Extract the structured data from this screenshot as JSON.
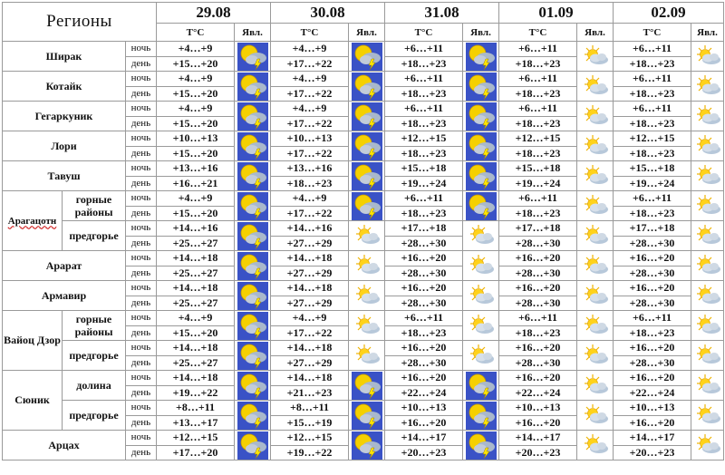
{
  "header": {
    "regions_title": "Регионы",
    "dates": [
      "29.08",
      "30.08",
      "31.08",
      "01.09",
      "02.09"
    ],
    "temp_label": "T°C",
    "phen_label": "Явл."
  },
  "labels": {
    "night": "ночь",
    "day": "день"
  },
  "icons": {
    "storm": "sun-cloud-lightning-icon",
    "partly": "partly-cloudy-icon"
  },
  "colors": {
    "storm_bg": "#3a52c6",
    "sun": "#f5d000",
    "cloud": "#a9b8cc",
    "bolt": "#ffe600"
  },
  "rows": [
    {
      "region": "Ширак",
      "sub": "",
      "temps": [
        [
          "+4…+9",
          "+15…+20"
        ],
        [
          "+4…+9",
          "+17…+22"
        ],
        [
          "+6…+11",
          "+18…+23"
        ],
        [
          "+6…+11",
          "+18…+23"
        ],
        [
          "+6…+11",
          "+18…+23"
        ]
      ],
      "icons": [
        "storm",
        "storm",
        "storm",
        "partly",
        "partly"
      ]
    },
    {
      "region": "Котайк",
      "sub": "",
      "temps": [
        [
          "+4…+9",
          "+15…+20"
        ],
        [
          "+4…+9",
          "+17…+22"
        ],
        [
          "+6…+11",
          "+18…+23"
        ],
        [
          "+6…+11",
          "+18…+23"
        ],
        [
          "+6…+11",
          "+18…+23"
        ]
      ],
      "icons": [
        "storm",
        "storm",
        "storm",
        "partly",
        "partly"
      ]
    },
    {
      "region": "Гегаркуник",
      "sub": "",
      "temps": [
        [
          "+4…+9",
          "+15…+20"
        ],
        [
          "+4…+9",
          "+17…+22"
        ],
        [
          "+6…+11",
          "+18…+23"
        ],
        [
          "+6…+11",
          "+18…+23"
        ],
        [
          "+6…+11",
          "+18…+23"
        ]
      ],
      "icons": [
        "storm",
        "storm",
        "storm",
        "partly",
        "partly"
      ]
    },
    {
      "region": "Лори",
      "sub": "",
      "temps": [
        [
          "+10…+13",
          "+15…+20"
        ],
        [
          "+10…+13",
          "+17…+22"
        ],
        [
          "+12…+15",
          "+18…+23"
        ],
        [
          "+12…+15",
          "+18…+23"
        ],
        [
          "+12…+15",
          "+18…+23"
        ]
      ],
      "icons": [
        "storm",
        "storm",
        "storm",
        "partly",
        "partly"
      ]
    },
    {
      "region": "Тавуш",
      "sub": "",
      "temps": [
        [
          "+13…+16",
          "+16…+21"
        ],
        [
          "+13…+16",
          "+18…+23"
        ],
        [
          "+15…+18",
          "+19…+24"
        ],
        [
          "+15…+18",
          "+19…+24"
        ],
        [
          "+15…+18",
          "+19…+24"
        ]
      ],
      "icons": [
        "storm",
        "storm",
        "storm",
        "partly",
        "partly"
      ]
    },
    {
      "region": "Арагацотн",
      "sub": "горные районы",
      "temps": [
        [
          "+4…+9",
          "+15…+20"
        ],
        [
          "+4…+9",
          "+17…+22"
        ],
        [
          "+6…+11",
          "+18…+23"
        ],
        [
          "+6…+11",
          "+18…+23"
        ],
        [
          "+6…+11",
          "+18…+23"
        ]
      ],
      "icons": [
        "storm",
        "storm",
        "storm",
        "partly",
        "partly"
      ]
    },
    {
      "region": "",
      "sub": "предгорье",
      "temps": [
        [
          "+14…+16",
          "+25…+27"
        ],
        [
          "+14…+16",
          "+27…+29"
        ],
        [
          "+17…+18",
          "+28…+30"
        ],
        [
          "+17…+18",
          "+28…+30"
        ],
        [
          "+17…+18",
          "+28…+30"
        ]
      ],
      "icons": [
        "storm",
        "partly",
        "partly",
        "partly",
        "partly"
      ]
    },
    {
      "region": "Арарат",
      "sub": "",
      "temps": [
        [
          "+14…+18",
          "+25…+27"
        ],
        [
          "+14…+18",
          "+27…+29"
        ],
        [
          "+16…+20",
          "+28…+30"
        ],
        [
          "+16…+20",
          "+28…+30"
        ],
        [
          "+16…+20",
          "+28…+30"
        ]
      ],
      "icons": [
        "storm",
        "partly",
        "partly",
        "partly",
        "partly"
      ]
    },
    {
      "region": "Армавир",
      "sub": "",
      "temps": [
        [
          "+14…+18",
          "+25…+27"
        ],
        [
          "+14…+18",
          "+27…+29"
        ],
        [
          "+16…+20",
          "+28…+30"
        ],
        [
          "+16…+20",
          "+28…+30"
        ],
        [
          "+16…+20",
          "+28…+30"
        ]
      ],
      "icons": [
        "storm",
        "partly",
        "partly",
        "partly",
        "partly"
      ]
    },
    {
      "region": "Вайоц Дзор",
      "sub": "горные районы",
      "temps": [
        [
          "+4…+9",
          "+15…+20"
        ],
        [
          "+4…+9",
          "+17…+22"
        ],
        [
          "+6…+11",
          "+18…+23"
        ],
        [
          "+6…+11",
          "+18…+23"
        ],
        [
          "+6…+11",
          "+18…+23"
        ]
      ],
      "icons": [
        "storm",
        "partly",
        "partly",
        "partly",
        "partly"
      ]
    },
    {
      "region": "",
      "sub": "предгорье",
      "temps": [
        [
          "+14…+18",
          "+25…+27"
        ],
        [
          "+14…+18",
          "+27…+29"
        ],
        [
          "+16…+20",
          "+28…+30"
        ],
        [
          "+16…+20",
          "+28…+30"
        ],
        [
          "+16…+20",
          "+28…+30"
        ]
      ],
      "icons": [
        "storm",
        "partly",
        "partly",
        "partly",
        "partly"
      ]
    },
    {
      "region": "Сюник",
      "sub": "долина",
      "temps": [
        [
          "+14…+18",
          "+19…+22"
        ],
        [
          "+14…+18",
          "+21…+23"
        ],
        [
          "+16…+20",
          "+22…+24"
        ],
        [
          "+16…+20",
          "+22…+24"
        ],
        [
          "+16…+20",
          "+22…+24"
        ]
      ],
      "icons": [
        "storm",
        "storm",
        "storm",
        "partly",
        "partly"
      ]
    },
    {
      "region": "",
      "sub": "предгорье",
      "temps": [
        [
          "+8…+11",
          "+13…+17"
        ],
        [
          "+8…+11",
          "+15…+19"
        ],
        [
          "+10…+13",
          "+16…+20"
        ],
        [
          "+10…+13",
          "+16…+20"
        ],
        [
          "+10…+13",
          "+16…+20"
        ]
      ],
      "icons": [
        "storm",
        "storm",
        "storm",
        "partly",
        "partly"
      ]
    },
    {
      "region": "Арцах",
      "sub": "",
      "temps": [
        [
          "+12…+15",
          "+17…+20"
        ],
        [
          "+12…+15",
          "+19…+22"
        ],
        [
          "+14…+17",
          "+20…+23"
        ],
        [
          "+14…+17",
          "+20…+23"
        ],
        [
          "+14…+17",
          "+20…+23"
        ]
      ],
      "icons": [
        "storm",
        "storm",
        "storm",
        "partly",
        "partly"
      ]
    }
  ]
}
